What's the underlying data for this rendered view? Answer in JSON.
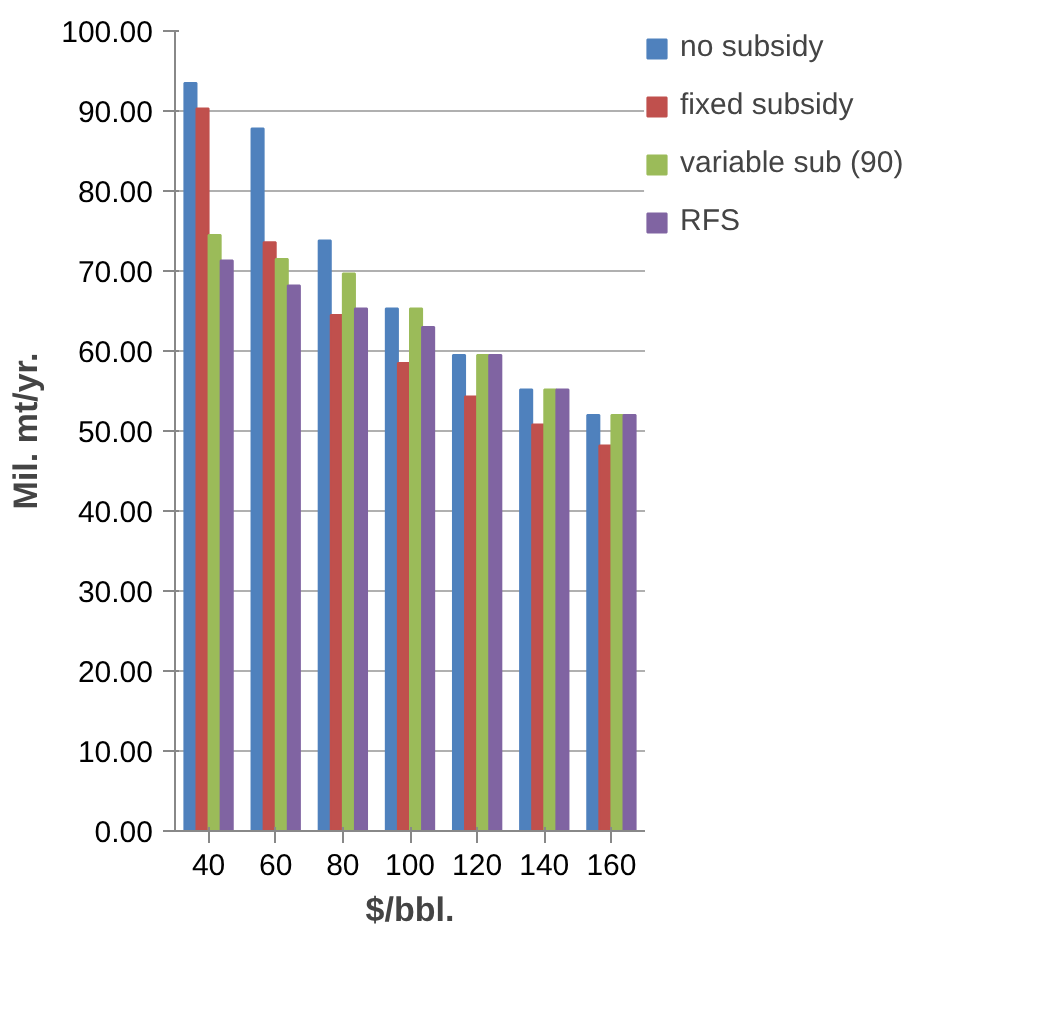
{
  "chart_data": {
    "type": "bar",
    "xlabel": "$/bbl.",
    "ylabel": "Mil. mt/yr.",
    "categories": [
      "40",
      "60",
      "80",
      "100",
      "120",
      "140",
      "160"
    ],
    "series": [
      {
        "name": "no subsidy",
        "color": "#4f81bd",
        "values": [
          93.5,
          87.8,
          73.8,
          65.3,
          59.5,
          55.2,
          52.0
        ]
      },
      {
        "name": "fixed subsidy",
        "color": "#c0504d",
        "values": [
          90.3,
          73.6,
          64.5,
          58.5,
          54.3,
          50.8,
          48.2
        ]
      },
      {
        "name": "variable sub (90)",
        "color": "#9bbb59",
        "values": [
          74.5,
          71.5,
          69.7,
          65.3,
          59.5,
          55.2,
          52.0
        ]
      },
      {
        "name": "RFS",
        "color": "#8064a2",
        "values": [
          71.3,
          68.2,
          65.3,
          63.0,
          59.5,
          55.2,
          52.0
        ]
      }
    ],
    "ylim": [
      0,
      100
    ],
    "yticks": [
      {
        "value": 0,
        "label": "0.00"
      },
      {
        "value": 10,
        "label": "10.00"
      },
      {
        "value": 20,
        "label": "20.00"
      },
      {
        "value": 30,
        "label": "30.00"
      },
      {
        "value": 40,
        "label": "40.00"
      },
      {
        "value": 50,
        "label": "50.00"
      },
      {
        "value": 60,
        "label": "60.00"
      },
      {
        "value": 70,
        "label": "70.00"
      },
      {
        "value": 80,
        "label": "80.00"
      },
      {
        "value": 90,
        "label": "90.00"
      },
      {
        "value": 100,
        "label": "100.00"
      }
    ],
    "grid": "y",
    "legend": "top right"
  }
}
